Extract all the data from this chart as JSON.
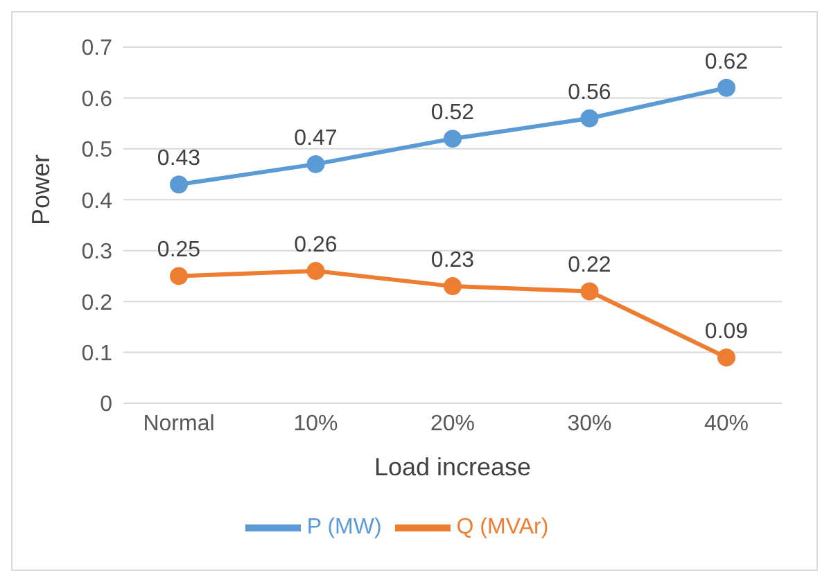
{
  "chart_data": {
    "type": "line",
    "xlabel": "Load increase",
    "ylabel": "Power",
    "categories": [
      "Normal",
      "10%",
      "20%",
      "30%",
      "40%"
    ],
    "series": [
      {
        "name": "P (MW)",
        "color": "#5b9bd5",
        "values": [
          0.43,
          0.47,
          0.52,
          0.56,
          0.62
        ]
      },
      {
        "name": "Q (MVAr)",
        "color": "#ed7d31",
        "values": [
          0.25,
          0.26,
          0.23,
          0.22,
          0.09
        ]
      }
    ],
    "ylim": [
      0,
      0.7
    ],
    "yticks": [
      0,
      0.1,
      0.2,
      0.3,
      0.4,
      0.5,
      0.6,
      0.7
    ],
    "grid": "y",
    "legend": "bottom",
    "marker": "circle",
    "line_style": "solid",
    "data_labels": true
  }
}
